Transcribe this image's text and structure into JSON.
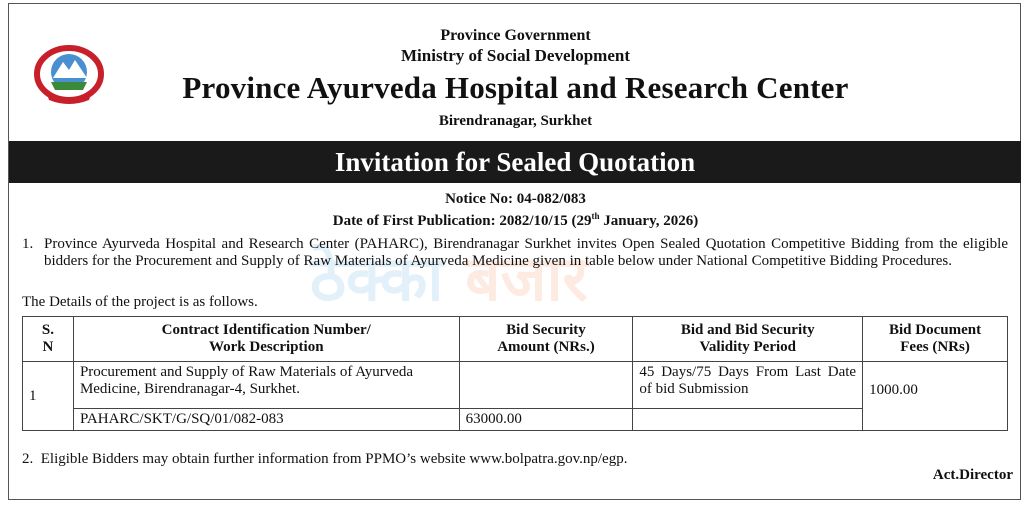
{
  "header": {
    "line1": "Province Government",
    "line2": "Ministry of Social Development",
    "title": "Province Ayurveda Hospital and Research Center",
    "location": "Birendranagar, Surkhet"
  },
  "banner": "Invitation for Sealed Quotation",
  "notice_no": "Notice No: 04-082/083",
  "publication": {
    "prefix": "Date of First Publication: 2082/10/15 (29",
    "sup": "th",
    "suffix": " January, 2026)"
  },
  "para1": {
    "num": "1.",
    "text": "Province Ayurveda Hospital and Research Center (PAHARC), Birendranagar Surkhet invites Open Sealed Quotation Competitive Bidding from the eligible bidders for  the Procurement and Supply of Raw Materials of Ayurveda Medicine   given in table below under National Competitive Bidding Procedures."
  },
  "details_intro": "The Details of the project is as follows.",
  "table": {
    "headers": [
      "S.\nN",
      "Contract Identification Number/\nWork Description",
      "Bid Security\nAmount (NRs.)",
      "Bid and Bid Security\nValidity Period",
      "Bid Document\nFees (NRs)"
    ],
    "sn": "1",
    "description": "Procurement and Supply of Raw Materials of Ayurveda Medicine, Birendranagar-4, Surkhet.",
    "contract_id": "PAHARC/SKT/G/SQ/01/082-083",
    "bid_security": "63000.00",
    "validity": "45 Days/75 Days From Last Date of bid Submission",
    "fees": "1000.00"
  },
  "para2": {
    "num": "2.",
    "text": "Eligible Bidders may obtain further information from PPMO’s website www.bolpatra.gov.np/egp."
  },
  "signatory": "Act.Director",
  "watermark": {
    "part1": "ठेक्का",
    "part2": "बजार"
  },
  "colors": {
    "banner": "#1a1a1a",
    "watermark_blue": "#2a8fe0",
    "watermark_orange": "#f06a2a",
    "emblem_red": "#c8202a"
  }
}
